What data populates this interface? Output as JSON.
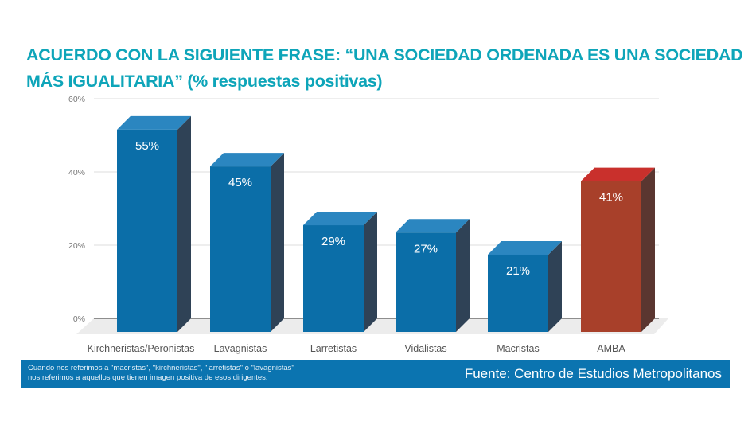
{
  "title_line1": "ACUERDO CON LA SIGUIENTE FRASE: “UNA SOCIEDAD ORDENADA ES UNA SOCIEDAD",
  "title_line2": "MÁS IGUALITARIA” (% respuestas positivas)",
  "footer": {
    "note_line1": "Cuando nos referimos a \"macristas\", \"kirchneristas\", \"larretistas\" o \"lavagnistas\"",
    "note_line2": "nos referimos a aquellos que tienen imagen positiva de esos dirigentes.",
    "source": "Fuente: Centro de Estudios Metropolitanos"
  },
  "chart_data": {
    "type": "bar",
    "title": "ACUERDO CON LA SIGUIENTE FRASE: “UNA SOCIEDAD ORDENADA ES UNA SOCIEDAD MÁS IGUALITARIA” (% respuestas positivas)",
    "categories": [
      "Kirchneristas/Peronistas",
      "Lavagnistas",
      "Larretistas",
      "Vidalistas",
      "Macristas",
      "AMBA"
    ],
    "values": [
      55,
      45,
      29,
      27,
      21,
      41
    ],
    "data_labels": [
      "55%",
      "45%",
      "29%",
      "27%",
      "21%",
      "41%"
    ],
    "xlabel": "",
    "ylabel": "",
    "ylim": [
      0,
      60
    ],
    "yticks": [
      0,
      20,
      40,
      60
    ],
    "ytick_labels": [
      "0%",
      "20%",
      "40%",
      "60%"
    ],
    "grid": true,
    "style": "3d",
    "colors": {
      "default_front": "#0b6ea8",
      "default_top": "#2b86c0",
      "default_side": "#2f4256",
      "highlight_front": "#a8402a",
      "highlight_top": "#c9302c",
      "highlight_side": "#5a3630",
      "title": "#0ea5b9",
      "footer_bg": "#0b74b0"
    },
    "highlight_category": "AMBA"
  }
}
